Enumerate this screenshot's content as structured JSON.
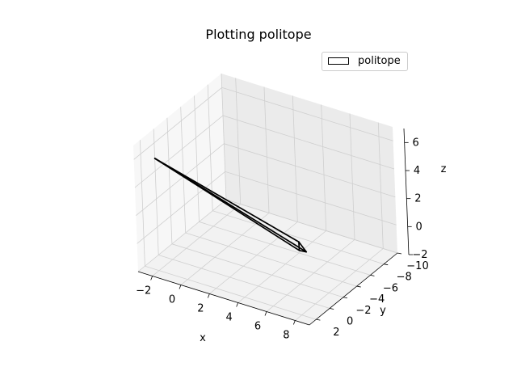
{
  "chart_data": {
    "type": "line",
    "title": "Plotting politope",
    "xlabel": "x",
    "ylabel": "y",
    "zlabel": "z",
    "xlim": [
      -3,
      9
    ],
    "ylim": [
      -10,
      3
    ],
    "zlim": [
      -2,
      7
    ],
    "x_ticks": [
      "−2",
      "0",
      "2",
      "4",
      "6",
      "8"
    ],
    "y_ticks": [
      "−10",
      "−8",
      "−6",
      "−4",
      "−2",
      "0",
      "2"
    ],
    "z_ticks": [
      "−2",
      "0",
      "2",
      "4",
      "6"
    ],
    "grid": true,
    "legend_position": "top-right",
    "series": [
      {
        "name": "politope",
        "color": "#000000",
        "vertices": [
          {
            "x": -2,
            "y": 2,
            "z": 6
          },
          {
            "x": 6,
            "y": -2,
            "z": 1
          },
          {
            "x": 7,
            "y": -1,
            "z": 1
          },
          {
            "x": 7,
            "y": 0,
            "z": 1.5
          }
        ],
        "edges": [
          [
            0,
            1
          ],
          [
            0,
            2
          ],
          [
            0,
            3
          ],
          [
            1,
            2
          ],
          [
            2,
            3
          ],
          [
            1,
            3
          ]
        ]
      }
    ]
  }
}
